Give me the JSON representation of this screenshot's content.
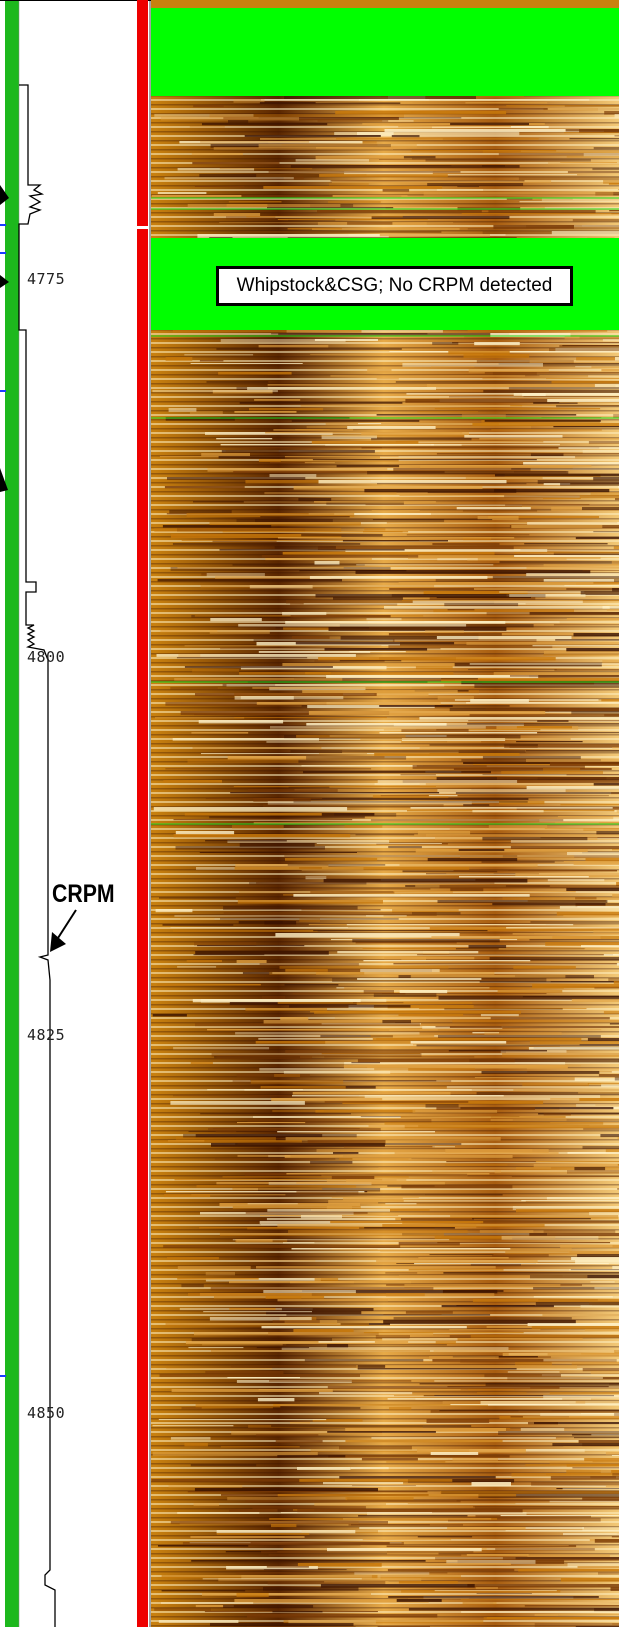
{
  "depth_track": {
    "labels": [
      {
        "depth": 4775,
        "text": "4775"
      },
      {
        "depth": 4800,
        "text": "4800"
      },
      {
        "depth": 4825,
        "text": "4825"
      },
      {
        "depth": 4850,
        "text": "4850"
      }
    ]
  },
  "annotations": {
    "zone_label": "Whipstock&CSG; No CRPM detected",
    "marker_label": "CRPM",
    "marker_depth": 4817
  },
  "colors": {
    "flag_track": "#1db81d",
    "quality_track": "#ee0000",
    "no_data": "#00ff00",
    "image_dark": "#3a1200",
    "image_mid": "#c8780a",
    "image_light": "#fff2c8"
  },
  "icons": [
    "arrow-pointer-icon"
  ]
}
